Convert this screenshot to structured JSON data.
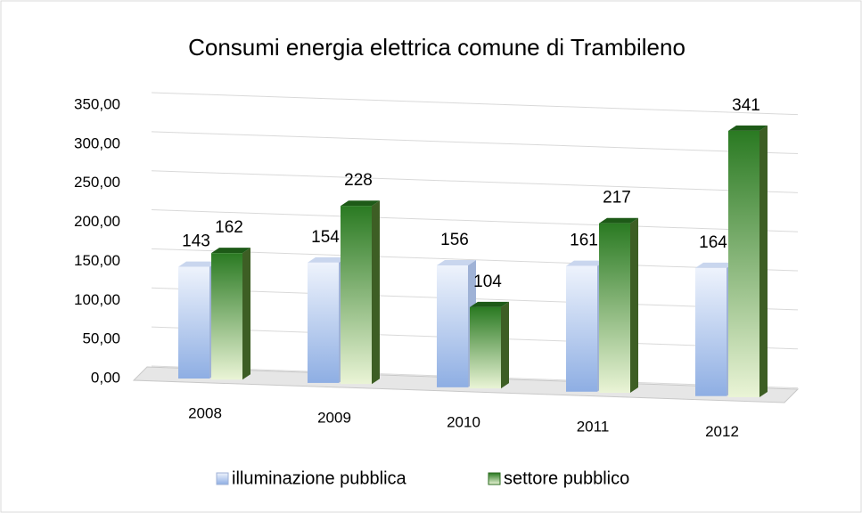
{
  "chart_data": {
    "type": "bar3d",
    "title": "Consumi energia elettrica comune di Trambileno",
    "categories": [
      "2008",
      "2009",
      "2010",
      "2011",
      "2012"
    ],
    "series": [
      {
        "name": "illuminazione pubblica",
        "color": "#8eaee3",
        "values": [
          143,
          154,
          156,
          161,
          164
        ]
      },
      {
        "name": "settore pubblico",
        "color": "#2a7a22",
        "values": [
          162,
          228,
          104,
          217,
          341
        ]
      }
    ],
    "ylim": [
      0,
      350
    ],
    "yticks": [
      {
        "value": 0,
        "label": "0,00"
      },
      {
        "value": 50,
        "label": "50,00"
      },
      {
        "value": 100,
        "label": "100,00"
      },
      {
        "value": 150,
        "label": "150,00"
      },
      {
        "value": 200,
        "label": "200,00"
      },
      {
        "value": 250,
        "label": "250,00"
      },
      {
        "value": 300,
        "label": "300,00"
      },
      {
        "value": 350,
        "label": "350,00"
      }
    ],
    "grid": true,
    "legend": "bottom"
  }
}
